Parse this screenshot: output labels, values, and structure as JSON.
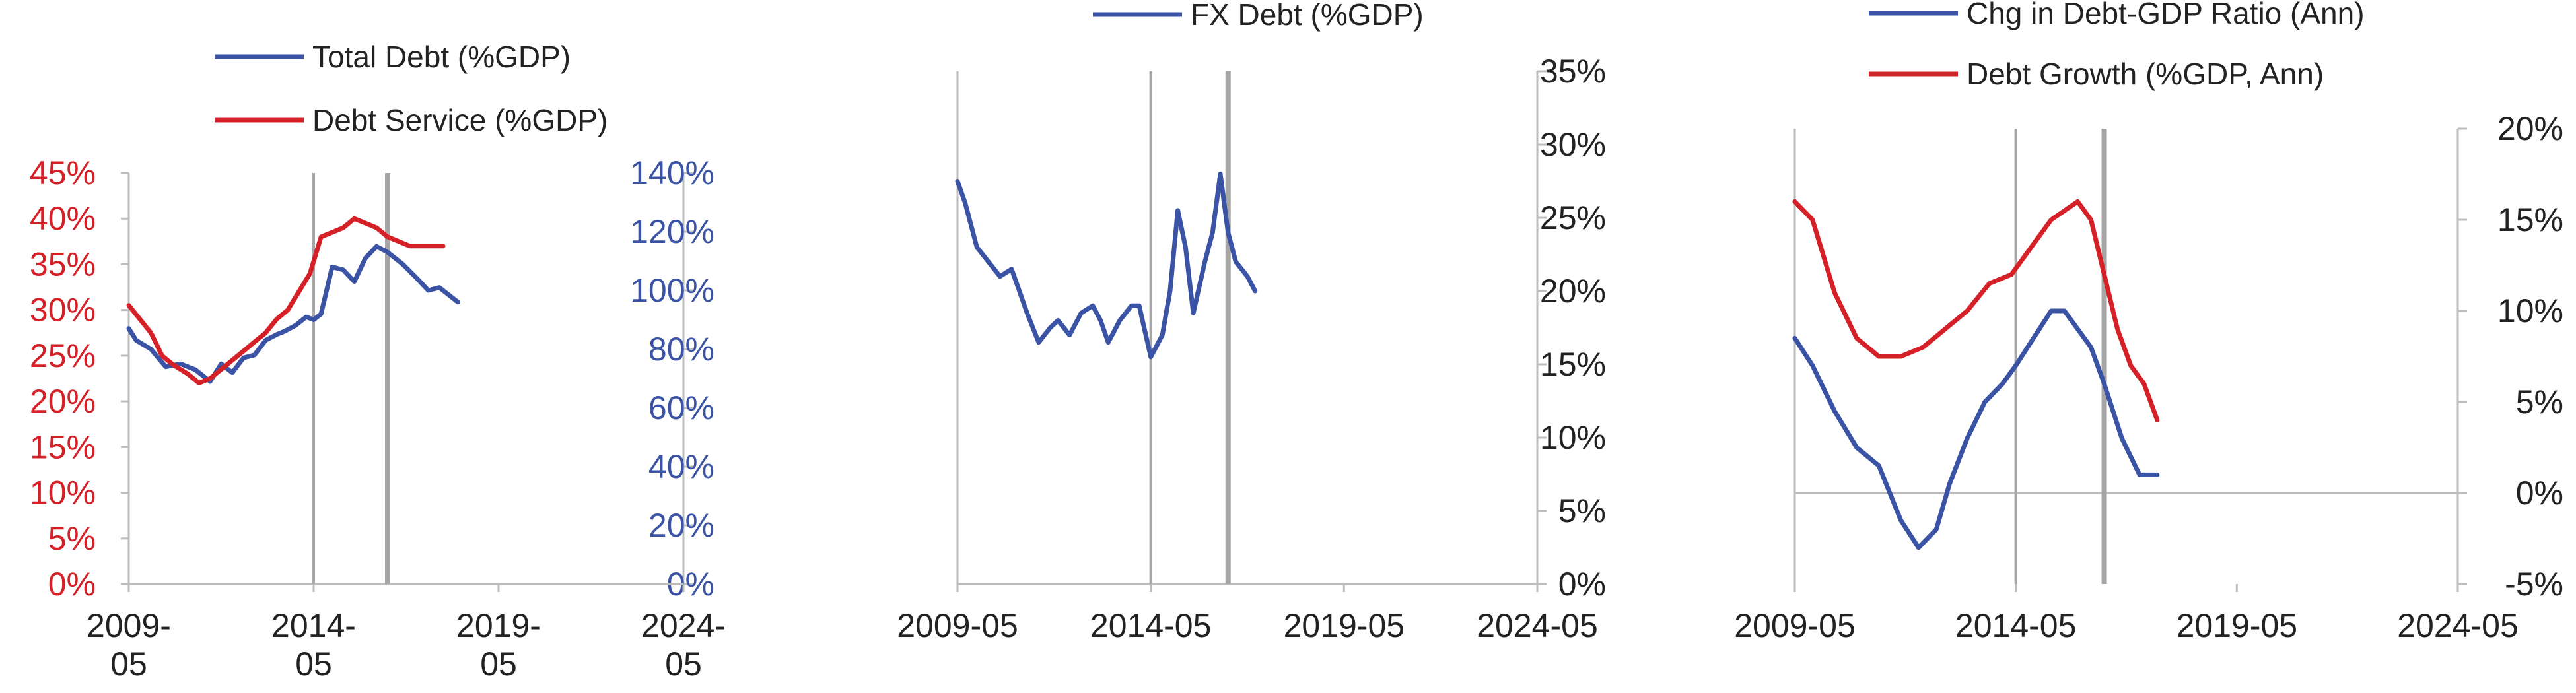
{
  "chart_data": [
    {
      "type": "line",
      "legend": {
        "placement": "top-center",
        "entries": [
          "Total Debt (%GDP)",
          "Debt Service (%GDP)"
        ]
      },
      "x_ticks": [
        "2009-05",
        "2014-05",
        "2019-05",
        "2024-05"
      ],
      "xlim": [
        2009.4,
        2024.4
      ],
      "vlines": [
        2014.4,
        2016.4
      ],
      "left_axis": {
        "ylim": [
          0,
          45
        ],
        "ticks": [
          "0%",
          "5%",
          "10%",
          "15%",
          "20%",
          "25%",
          "30%",
          "35%",
          "40%",
          "45%"
        ],
        "color": "#d62027"
      },
      "right_axis": {
        "ylim": [
          0,
          140
        ],
        "ticks": [
          "0%",
          "20%",
          "40%",
          "60%",
          "80%",
          "100%",
          "120%",
          "140%"
        ],
        "color": "#3a53a4"
      },
      "series": [
        {
          "name": "Total Debt (%GDP)",
          "axis": "right",
          "color": "#3a53a4",
          "x": [
            2009.4,
            2009.6,
            2010.0,
            2010.4,
            2010.8,
            2011.2,
            2011.6,
            2011.9,
            2012.2,
            2012.5,
            2012.8,
            2013.1,
            2013.4,
            2013.6,
            2013.9,
            2014.2,
            2014.4,
            2014.6,
            2014.9,
            2015.2,
            2015.5,
            2015.8,
            2016.1,
            2016.4,
            2016.8,
            2017.2,
            2017.5,
            2017.8,
            2018.3
          ],
          "y": [
            87,
            83,
            80,
            74,
            75,
            73,
            69,
            75,
            72,
            77,
            78,
            83,
            85,
            86,
            88,
            91,
            90,
            92,
            108,
            107,
            103,
            111,
            115,
            113,
            109,
            104,
            100,
            101,
            96
          ]
        },
        {
          "name": "Debt Service (%GDP)",
          "axis": "left",
          "color": "#d62027",
          "x": [
            2009.4,
            2009.7,
            2010.0,
            2010.3,
            2010.6,
            2011.0,
            2011.3,
            2011.6,
            2011.9,
            2012.2,
            2012.5,
            2012.8,
            2013.1,
            2013.4,
            2013.7,
            2014.0,
            2014.3,
            2014.6,
            2014.9,
            2015.2,
            2015.5,
            2015.8,
            2016.1,
            2016.4,
            2016.7,
            2017.0,
            2017.3,
            2017.6,
            2017.9
          ],
          "y": [
            30.5,
            29,
            27.5,
            25,
            24,
            23,
            22,
            22.5,
            23.5,
            24.5,
            25.5,
            26.5,
            27.5,
            29,
            30,
            32,
            34,
            38,
            38.5,
            39,
            40,
            39.5,
            39,
            38,
            37.5,
            37,
            37,
            37,
            37
          ]
        }
      ]
    },
    {
      "type": "line",
      "legend": {
        "placement": "top-center",
        "entries": [
          "FX Debt (%GDP)"
        ]
      },
      "x_ticks": [
        "2009-05",
        "2014-05",
        "2019-05",
        "2024-05"
      ],
      "xlim": [
        2009.4,
        2024.4
      ],
      "vlines": [
        2014.4,
        2016.4
      ],
      "right_axis": {
        "ylim": [
          0,
          35
        ],
        "ticks": [
          "0%",
          "5%",
          "10%",
          "15%",
          "20%",
          "25%",
          "30%",
          "35%"
        ],
        "color": "#222222"
      },
      "series": [
        {
          "name": "FX Debt (%GDP)",
          "axis": "right",
          "color": "#3a53a4",
          "x": [
            2009.4,
            2009.6,
            2009.9,
            2010.2,
            2010.5,
            2010.8,
            2011.0,
            2011.2,
            2011.5,
            2011.8,
            2012.0,
            2012.3,
            2012.6,
            2012.9,
            2013.1,
            2013.3,
            2013.6,
            2013.9,
            2014.1,
            2014.4,
            2014.7,
            2014.9,
            2015.1,
            2015.3,
            2015.5,
            2015.8,
            2016.0,
            2016.2,
            2016.4,
            2016.6,
            2016.9,
            2017.1
          ],
          "y": [
            27.5,
            26,
            23,
            22,
            21,
            21.5,
            20,
            18.5,
            16.5,
            17.5,
            18,
            17,
            18.5,
            19,
            18,
            16.5,
            18,
            19,
            19,
            15.5,
            17,
            20,
            25.5,
            23,
            18.5,
            22,
            24,
            28,
            24,
            22,
            21,
            20
          ]
        }
      ]
    },
    {
      "type": "line",
      "legend": {
        "placement": "top-center",
        "entries": [
          "Chg in Debt-GDP Ratio (Ann)",
          "Debt Growth (%GDP, Ann)"
        ]
      },
      "x_ticks": [
        "2009-05",
        "2014-05",
        "2019-05",
        "2024-05"
      ],
      "xlim": [
        2009.4,
        2024.4
      ],
      "vlines": [
        2014.4,
        2016.4
      ],
      "zero_line": true,
      "right_axis": {
        "ylim": [
          -5,
          20
        ],
        "ticks": [
          "-5%",
          "0%",
          "5%",
          "10%",
          "15%",
          "20%"
        ],
        "color": "#222222"
      },
      "series": [
        {
          "name": "Chg in Debt-GDP Ratio (Ann)",
          "axis": "right",
          "color": "#3a53a4",
          "x": [
            2009.4,
            2009.8,
            2010.3,
            2010.8,
            2011.3,
            2011.8,
            2012.2,
            2012.6,
            2012.9,
            2013.3,
            2013.7,
            2014.1,
            2014.4,
            2014.8,
            2015.2,
            2015.5,
            2015.8,
            2016.1,
            2016.4,
            2016.8,
            2017.2,
            2017.6
          ],
          "y": [
            8.5,
            7,
            4.5,
            2.5,
            1.5,
            -1.5,
            -3,
            -2,
            0.5,
            3,
            5,
            6,
            7,
            8.5,
            10,
            10,
            9,
            8,
            6,
            3,
            1,
            1
          ]
        },
        {
          "name": "Debt Growth (%GDP, Ann)",
          "axis": "right",
          "color": "#d62027",
          "x": [
            2009.4,
            2009.8,
            2010.3,
            2010.8,
            2011.3,
            2011.8,
            2012.3,
            2012.8,
            2013.3,
            2013.8,
            2014.3,
            2014.6,
            2014.9,
            2015.2,
            2015.5,
            2015.8,
            2016.1,
            2016.4,
            2016.7,
            2017.0,
            2017.3,
            2017.6
          ],
          "y": [
            16,
            15,
            11,
            8.5,
            7.5,
            7.5,
            8,
            9,
            10,
            11.5,
            12,
            13,
            14,
            15,
            15.5,
            16,
            15,
            12,
            9,
            7,
            6,
            4
          ]
        }
      ]
    }
  ]
}
